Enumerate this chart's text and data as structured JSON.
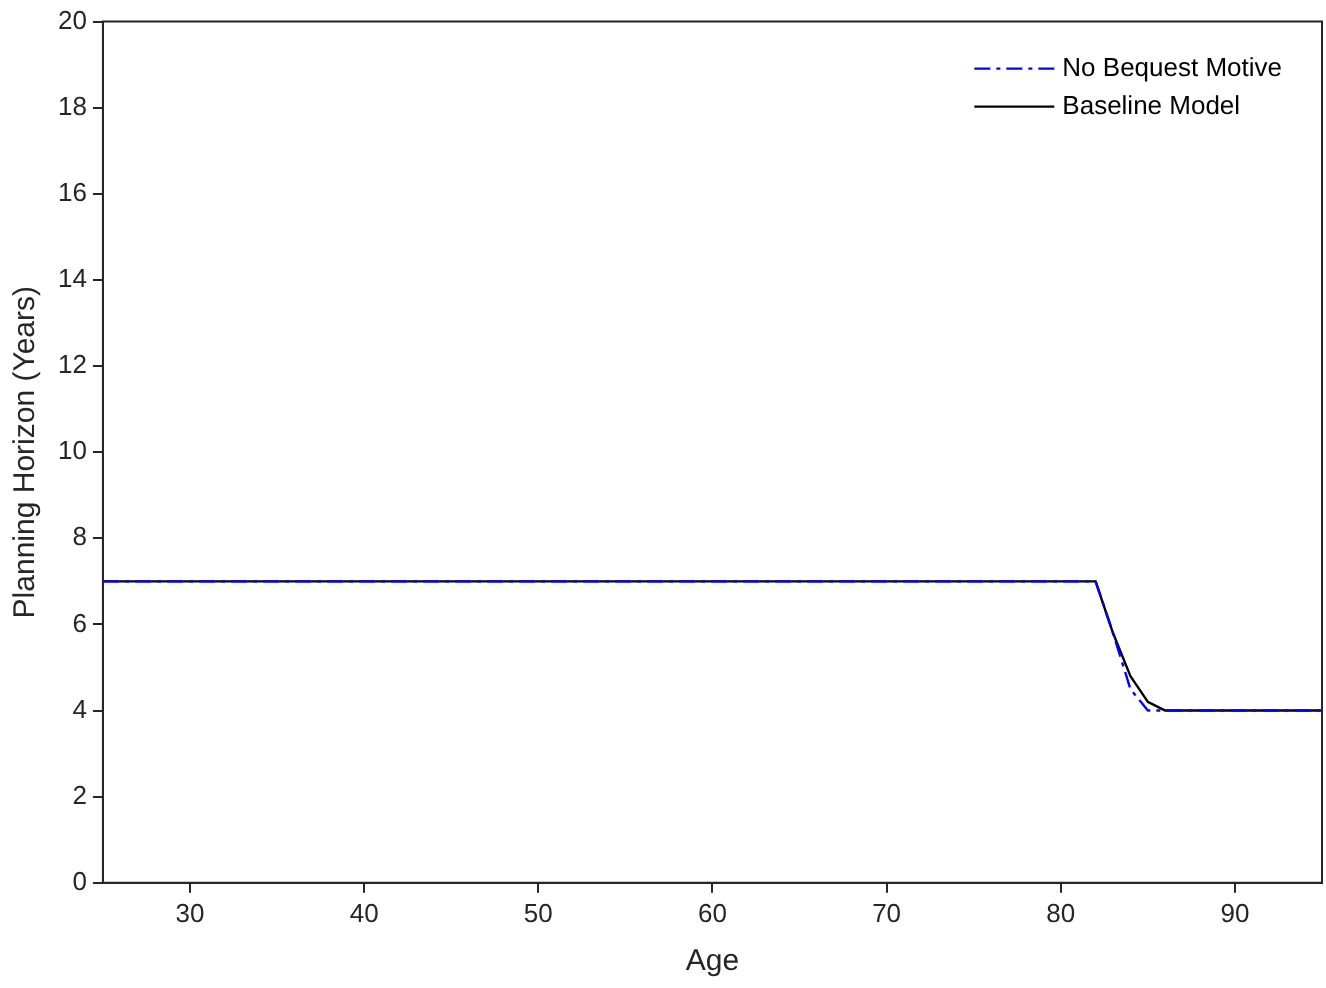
{
  "chart_data": {
    "type": "line",
    "xlabel": "Age",
    "ylabel": "Planning Horizon (Years)",
    "xlim": [
      25,
      95
    ],
    "xticks": [
      30,
      40,
      50,
      60,
      70,
      80,
      90
    ],
    "ylim": [
      0,
      20
    ],
    "yticks": [
      0,
      2,
      4,
      6,
      8,
      10,
      12,
      14,
      16,
      18,
      20
    ],
    "grid": false,
    "legend": "top right",
    "marker": "none",
    "series": [
      {
        "name": "No Bequest Motive",
        "color": "#0000ff",
        "line_style": "dashdot",
        "x": [
          25,
          82,
          83,
          84,
          85,
          95
        ],
        "values": [
          7,
          7,
          5.8,
          4.5,
          4,
          4
        ]
      },
      {
        "name": "Baseline Model",
        "color": "#000000",
        "line_style": "solid",
        "x": [
          25,
          82,
          83,
          84,
          85,
          86,
          95
        ],
        "values": [
          7,
          7,
          5.8,
          4.8,
          4.2,
          4,
          4
        ]
      }
    ]
  }
}
